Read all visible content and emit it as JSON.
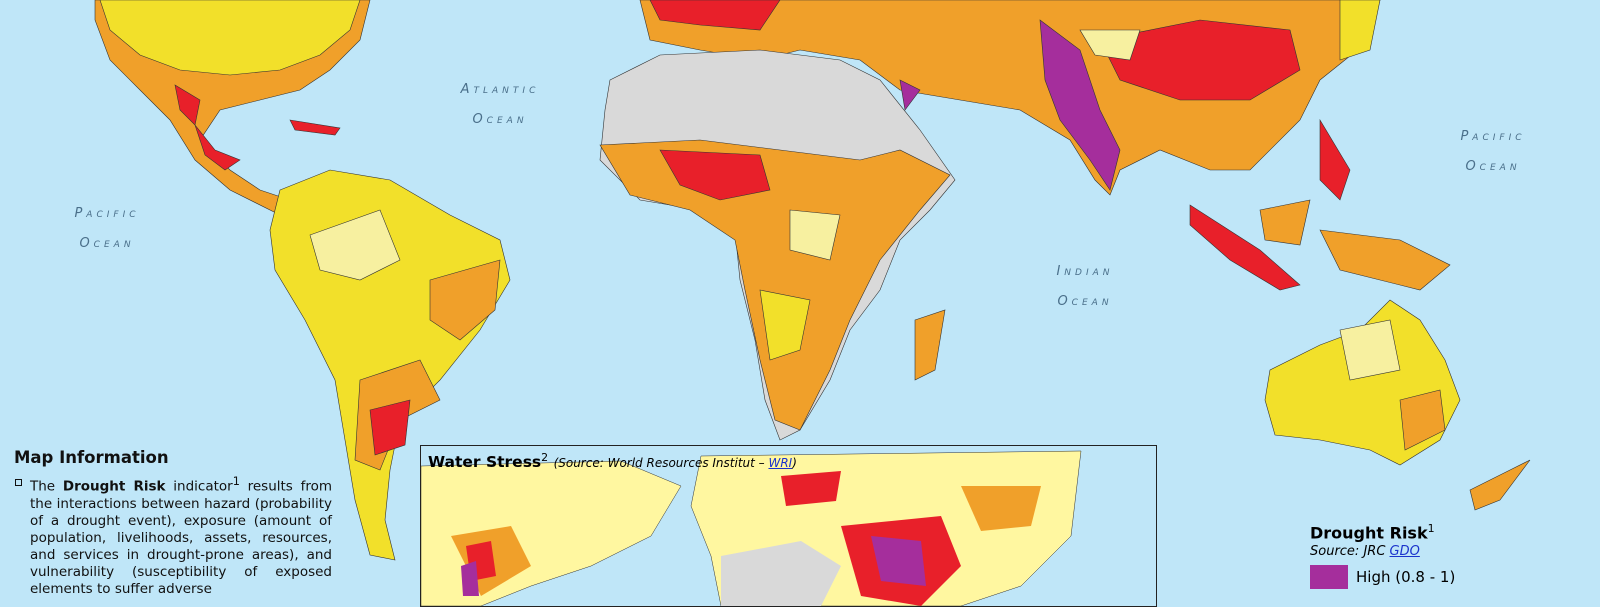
{
  "ocean_labels": [
    {
      "line1": "Atlantic",
      "line2": "Ocean"
    },
    {
      "line1": "Pacific",
      "line2": "Ocean"
    },
    {
      "line1": "Indian",
      "line2": "Ocean"
    },
    {
      "line1": "Pacific",
      "line2": "Ocean"
    }
  ],
  "map_information": {
    "title": "Map Information",
    "pre": "The ",
    "bold": "Drought Risk",
    "mid": " indicator",
    "sup": "1",
    "text": " results from the interactions between hazard (probability of a drought event), exposure (amount of population, livelihoods, assets, resources, and services in drought-prone areas), and vulnerability (susceptibility of exposed elements to suffer adverse"
  },
  "inset": {
    "title": "Water Stress",
    "sup": "2",
    "source_prefix": "(Source: World Resources Institut – ",
    "source_link": "WRI",
    "source_suffix": ")"
  },
  "legend": {
    "title": "Drought Risk",
    "sup": "1",
    "source_prefix": "Source: JRC ",
    "source_link": "GDO",
    "items": [
      {
        "label": "High (0.8 - 1)",
        "color": "#a52e9c"
      }
    ]
  }
}
